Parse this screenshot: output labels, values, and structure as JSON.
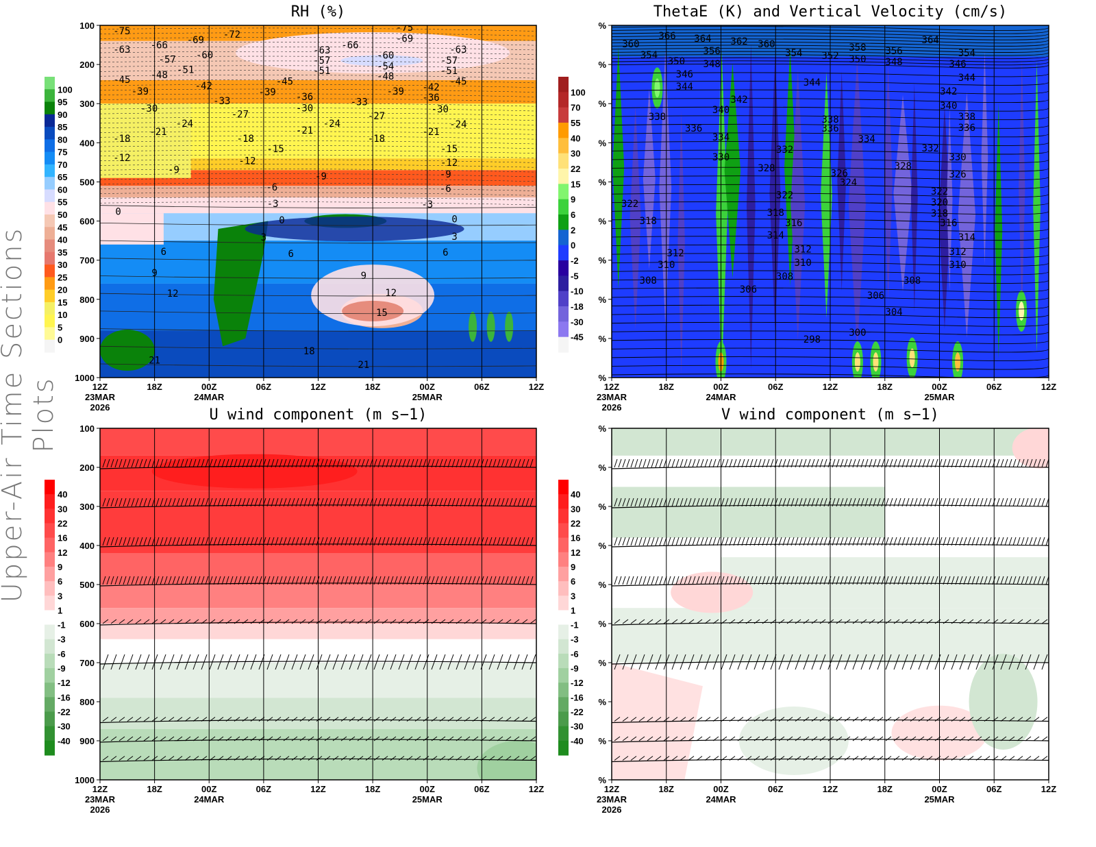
{
  "side_title": "Upper-Air Time Sections Plots",
  "x_axis": {
    "hours": [
      0,
      6,
      12,
      18,
      24,
      30,
      36,
      42,
      48
    ],
    "labels": [
      "12Z",
      "18Z",
      "00Z",
      "06Z",
      "12Z",
      "18Z",
      "00Z",
      "06Z",
      "12Z"
    ],
    "dates": [
      {
        "hour": 0,
        "label": "23MAR"
      },
      {
        "hour": 12,
        "label": "24MAR"
      },
      {
        "hour": 36,
        "label": "25MAR"
      }
    ],
    "year": "2026"
  },
  "chart_data": [
    {
      "id": "rh",
      "type": "heatmap",
      "title": "RH (%)",
      "y_ticks": [
        "100",
        "200",
        "300",
        "400",
        "500",
        "600",
        "700",
        "800",
        "900",
        "1000"
      ],
      "y_values": [
        100,
        200,
        300,
        400,
        500,
        600,
        700,
        800,
        900,
        1000
      ],
      "ylim": [
        100,
        1000
      ],
      "xlim_hours": [
        0,
        48
      ],
      "colorbar": {
        "labels": [
          "100",
          "95",
          "90",
          "85",
          "80",
          "75",
          "70",
          "65",
          "60",
          "55",
          "50",
          "45",
          "40",
          "35",
          "30",
          "25",
          "20",
          "15",
          "10",
          "5",
          "0"
        ],
        "colors": [
          "#78e078",
          "#3cb43c",
          "#0a820a",
          "#0a2896",
          "#0a4bbe",
          "#0f6ee6",
          "#148cf5",
          "#32b4ff",
          "#96cdff",
          "#d7dcff",
          "#ffe1e6",
          "#f5c8b4",
          "#eeaf96",
          "#e68c7d",
          "#e6786e",
          "#ff5a1e",
          "#ff9b14",
          "#ffcd28",
          "#f5f064",
          "#fff550",
          "#fffa96",
          "#f5f5f5"
        ]
      },
      "contour_labels": [
        {
          "t": 2.4,
          "p": 114,
          "v": "-75"
        },
        {
          "t": 2.4,
          "p": 161,
          "v": "-63"
        },
        {
          "t": 6.5,
          "p": 150,
          "v": "-66"
        },
        {
          "t": 10.5,
          "p": 137,
          "v": "-69"
        },
        {
          "t": 14.5,
          "p": 123,
          "v": "-72"
        },
        {
          "t": 7.4,
          "p": 187,
          "v": "-57"
        },
        {
          "t": 11.5,
          "p": 175,
          "v": "-60"
        },
        {
          "t": 9.4,
          "p": 213,
          "v": "-51"
        },
        {
          "t": 6.5,
          "p": 226,
          "v": "-48"
        },
        {
          "t": 2.4,
          "p": 238,
          "v": "-45"
        },
        {
          "t": 4.4,
          "p": 268,
          "v": "-39"
        },
        {
          "t": 11.4,
          "p": 254,
          "v": "-42"
        },
        {
          "t": 5.4,
          "p": 312,
          "v": "-30"
        },
        {
          "t": 13.4,
          "p": 293,
          "v": "-33"
        },
        {
          "t": 9.3,
          "p": 350,
          "v": "-24"
        },
        {
          "t": 15.4,
          "p": 327,
          "v": "-27"
        },
        {
          "t": 6.4,
          "p": 371,
          "v": "-21"
        },
        {
          "t": 2.4,
          "p": 389,
          "v": "-18"
        },
        {
          "t": 2.4,
          "p": 438,
          "v": "-12"
        },
        {
          "t": 16,
          "p": 389,
          "v": "-18"
        },
        {
          "t": 19.3,
          "p": 415,
          "v": "-15"
        },
        {
          "t": 16.2,
          "p": 446,
          "v": "-12"
        },
        {
          "t": 8.1,
          "p": 469,
          "v": "-9"
        },
        {
          "t": 24.3,
          "p": 485,
          "v": "-9"
        },
        {
          "t": 18.9,
          "p": 513,
          "v": "-6"
        },
        {
          "t": 19,
          "p": 555,
          "v": "-3"
        },
        {
          "t": 2,
          "p": 575,
          "v": "0"
        },
        {
          "t": 20,
          "p": 597,
          "v": "0"
        },
        {
          "t": 18,
          "p": 641,
          "v": "3"
        },
        {
          "t": 7,
          "p": 678,
          "v": "6"
        },
        {
          "t": 21,
          "p": 683,
          "v": "6"
        },
        {
          "t": 6,
          "p": 732,
          "v": "9"
        },
        {
          "t": 8,
          "p": 785,
          "v": "12"
        },
        {
          "t": 18.4,
          "p": 270,
          "v": "-39"
        },
        {
          "t": 20.3,
          "p": 243,
          "v": "-45"
        },
        {
          "t": 22.5,
          "p": 282,
          "v": "-36"
        },
        {
          "t": 22.5,
          "p": 311,
          "v": "-30"
        },
        {
          "t": 22.5,
          "p": 368,
          "v": "-21"
        },
        {
          "t": 25.5,
          "p": 350,
          "v": "-24"
        },
        {
          "t": 24.4,
          "p": 163,
          "v": "-63"
        },
        {
          "t": 24.4,
          "p": 189,
          "v": "-57"
        },
        {
          "t": 24.4,
          "p": 216,
          "v": "-51"
        },
        {
          "t": 27.5,
          "p": 150,
          "v": "-66"
        },
        {
          "t": 31.4,
          "p": 176,
          "v": "-60"
        },
        {
          "t": 31.4,
          "p": 204,
          "v": "-54"
        },
        {
          "t": 31.4,
          "p": 230,
          "v": "-48"
        },
        {
          "t": 33.5,
          "p": 105,
          "v": "-75"
        },
        {
          "t": 33.5,
          "p": 133,
          "v": "-69"
        },
        {
          "t": 28.5,
          "p": 295,
          "v": "-33"
        },
        {
          "t": 32.5,
          "p": 268,
          "v": "-39"
        },
        {
          "t": 30.4,
          "p": 331,
          "v": "-27"
        },
        {
          "t": 30.4,
          "p": 389,
          "v": "-18"
        },
        {
          "t": 36.4,
          "p": 258,
          "v": "-42"
        },
        {
          "t": 36.4,
          "p": 284,
          "v": "-36"
        },
        {
          "t": 37.4,
          "p": 314,
          "v": "-30"
        },
        {
          "t": 36.4,
          "p": 371,
          "v": "-21"
        },
        {
          "t": 39.4,
          "p": 161,
          "v": "-63"
        },
        {
          "t": 38.4,
          "p": 189,
          "v": "-57"
        },
        {
          "t": 38.4,
          "p": 216,
          "v": "-51"
        },
        {
          "t": 39.4,
          "p": 243,
          "v": "-45"
        },
        {
          "t": 39.4,
          "p": 352,
          "v": "-24"
        },
        {
          "t": 38.4,
          "p": 415,
          "v": "-15"
        },
        {
          "t": 38.4,
          "p": 450,
          "v": "-12"
        },
        {
          "t": 38,
          "p": 480,
          "v": "-9"
        },
        {
          "t": 38,
          "p": 517,
          "v": "-6"
        },
        {
          "t": 36,
          "p": 557,
          "v": "-3"
        },
        {
          "t": 39,
          "p": 595,
          "v": "0"
        },
        {
          "t": 39,
          "p": 639,
          "v": "3"
        },
        {
          "t": 38,
          "p": 680,
          "v": "6"
        },
        {
          "t": 29,
          "p": 739,
          "v": "9"
        },
        {
          "t": 32,
          "p": 783,
          "v": "12"
        },
        {
          "t": 31,
          "p": 834,
          "v": "15"
        },
        {
          "t": 23,
          "p": 932,
          "v": "18"
        },
        {
          "t": 29,
          "p": 967,
          "v": "21"
        },
        {
          "t": 6,
          "p": 955,
          "v": "21"
        }
      ]
    },
    {
      "id": "thetae",
      "type": "heatmap",
      "title": "ThetaE (K) and Vertical Velocity (cm/s)",
      "y_ticks": [
        "%",
        "%",
        "%",
        "%",
        "%",
        "%",
        "%",
        "%",
        "%",
        "%"
      ],
      "y_values": [
        100,
        200,
        300,
        400,
        500,
        600,
        700,
        800,
        900,
        1000
      ],
      "ylim": [
        100,
        1000
      ],
      "xlim_hours": [
        0,
        48
      ],
      "colorbar": {
        "labels": [
          "100",
          "70",
          "55",
          "40",
          "30",
          "22",
          "15",
          "9",
          "6",
          "2",
          "0",
          "-2",
          "-5",
          "-10",
          "-18",
          "-30",
          "-45"
        ],
        "colors": [
          "#a01e1e",
          "#b42828",
          "#c83c3c",
          "#ff9b00",
          "#ffbe3c",
          "#ffe178",
          "#fff5aa",
          "#82f56e",
          "#3cd23c",
          "#0fa014",
          "#1464d2",
          "#1e3cff",
          "#2800a0",
          "#2d1ea0",
          "#5040c8",
          "#7364dc",
          "#8c78f0",
          "#f5f5f5"
        ]
      },
      "contour_labels": [
        {
          "t": 6.1,
          "p": 126,
          "v": "366"
        },
        {
          "t": 2.1,
          "p": 147,
          "v": "360"
        },
        {
          "t": 10,
          "p": 133,
          "v": "364"
        },
        {
          "t": 14,
          "p": 140,
          "v": "362"
        },
        {
          "t": 17,
          "p": 147,
          "v": "360"
        },
        {
          "t": 11,
          "p": 165,
          "v": "356"
        },
        {
          "t": 4.1,
          "p": 175,
          "v": "354"
        },
        {
          "t": 7.1,
          "p": 191,
          "v": "350"
        },
        {
          "t": 11,
          "p": 198,
          "v": "348"
        },
        {
          "t": 20,
          "p": 170,
          "v": "354"
        },
        {
          "t": 24,
          "p": 177,
          "v": "352"
        },
        {
          "t": 27,
          "p": 156,
          "v": "358"
        },
        {
          "t": 27,
          "p": 186,
          "v": "350"
        },
        {
          "t": 31,
          "p": 165,
          "v": "356"
        },
        {
          "t": 31,
          "p": 193,
          "v": "348"
        },
        {
          "t": 35,
          "p": 137,
          "v": "364"
        },
        {
          "t": 39,
          "p": 170,
          "v": "354"
        },
        {
          "t": 38,
          "p": 198,
          "v": "346"
        },
        {
          "t": 39,
          "p": 233,
          "v": "344"
        },
        {
          "t": 8,
          "p": 224,
          "v": "346"
        },
        {
          "t": 8,
          "p": 256,
          "v": "344"
        },
        {
          "t": 22,
          "p": 245,
          "v": "344"
        },
        {
          "t": 14,
          "p": 289,
          "v": "342"
        },
        {
          "t": 12,
          "p": 315,
          "v": "340"
        },
        {
          "t": 37,
          "p": 268,
          "v": "342"
        },
        {
          "t": 37,
          "p": 305,
          "v": "340"
        },
        {
          "t": 5,
          "p": 333,
          "v": "338"
        },
        {
          "t": 9,
          "p": 363,
          "v": "336"
        },
        {
          "t": 24,
          "p": 340,
          "v": "338"
        },
        {
          "t": 24,
          "p": 363,
          "v": "336"
        },
        {
          "t": 39,
          "p": 333,
          "v": "338"
        },
        {
          "t": 39,
          "p": 361,
          "v": "336"
        },
        {
          "t": 12,
          "p": 385,
          "v": "334"
        },
        {
          "t": 28,
          "p": 390,
          "v": "334"
        },
        {
          "t": 19,
          "p": 417,
          "v": "332"
        },
        {
          "t": 35,
          "p": 413,
          "v": "332"
        },
        {
          "t": 12,
          "p": 436,
          "v": "330"
        },
        {
          "t": 38,
          "p": 436,
          "v": "330"
        },
        {
          "t": 17,
          "p": 464,
          "v": "328"
        },
        {
          "t": 32,
          "p": 459,
          "v": "328"
        },
        {
          "t": 25,
          "p": 477,
          "v": "326"
        },
        {
          "t": 38,
          "p": 480,
          "v": "326"
        },
        {
          "t": 26,
          "p": 501,
          "v": "324"
        },
        {
          "t": 19,
          "p": 533,
          "v": "322"
        },
        {
          "t": 36,
          "p": 524,
          "v": "322"
        },
        {
          "t": 36,
          "p": 552,
          "v": "320"
        },
        {
          "t": 36,
          "p": 580,
          "v": "318"
        },
        {
          "t": 37,
          "p": 604,
          "v": "316"
        },
        {
          "t": 2,
          "p": 555,
          "v": "322"
        },
        {
          "t": 4,
          "p": 599,
          "v": "318"
        },
        {
          "t": 18,
          "p": 578,
          "v": "318"
        },
        {
          "t": 20,
          "p": 604,
          "v": "316"
        },
        {
          "t": 18,
          "p": 636,
          "v": "314"
        },
        {
          "t": 39,
          "p": 641,
          "v": "314"
        },
        {
          "t": 7,
          "p": 681,
          "v": "312"
        },
        {
          "t": 21,
          "p": 672,
          "v": "312"
        },
        {
          "t": 38,
          "p": 678,
          "v": "312"
        },
        {
          "t": 6,
          "p": 711,
          "v": "310"
        },
        {
          "t": 21,
          "p": 706,
          "v": "310"
        },
        {
          "t": 38,
          "p": 711,
          "v": "310"
        },
        {
          "t": 4,
          "p": 751,
          "v": "308"
        },
        {
          "t": 19,
          "p": 741,
          "v": "308"
        },
        {
          "t": 33,
          "p": 751,
          "v": "308"
        },
        {
          "t": 15,
          "p": 774,
          "v": "306"
        },
        {
          "t": 29,
          "p": 790,
          "v": "306"
        },
        {
          "t": 31,
          "p": 832,
          "v": "304"
        },
        {
          "t": 27,
          "p": 884,
          "v": "300"
        },
        {
          "t": 22,
          "p": 902,
          "v": "298"
        }
      ]
    },
    {
      "id": "uwind",
      "type": "heatmap",
      "title": "U wind component (m s−1)",
      "y_ticks": [
        "100",
        "200",
        "300",
        "400",
        "500",
        "600",
        "700",
        "800",
        "900",
        "1000"
      ],
      "y_values": [
        100,
        200,
        300,
        400,
        500,
        600,
        700,
        800,
        900,
        1000
      ],
      "ylim": [
        100,
        1000
      ],
      "xlim_hours": [
        0,
        48
      ],
      "barb_levels": [
        200,
        300,
        400,
        500,
        600,
        700,
        850,
        900,
        950
      ],
      "colorbar": {
        "labels": [
          "40",
          "30",
          "22",
          "16",
          "12",
          "9",
          "6",
          "3",
          "1",
          "-1",
          "-3",
          "-6",
          "-9",
          "-12",
          "-16",
          "-22",
          "-30",
          "-40"
        ],
        "colors": [
          "#ff0000",
          "#ff1e1e",
          "#ff3232",
          "#ff4b4b",
          "#ff6464",
          "#ff8080",
          "#ffa0a0",
          "#ffbebe",
          "#ffd7d7",
          "#ffffff",
          "#e6f0e6",
          "#d2e6d2",
          "#b9dcb9",
          "#a0d0a0",
          "#82be82",
          "#64aa64",
          "#4b9b4b",
          "#329132",
          "#1e8c1e"
        ]
      }
    },
    {
      "id": "vwind",
      "type": "heatmap",
      "title": "V wind component (m s−1)",
      "y_ticks": [
        "%",
        "%",
        "%",
        "%",
        "%",
        "%",
        "%",
        "%",
        "%",
        "%"
      ],
      "y_values": [
        100,
        200,
        300,
        400,
        500,
        600,
        700,
        800,
        900,
        1000
      ],
      "ylim": [
        100,
        1000
      ],
      "xlim_hours": [
        0,
        48
      ],
      "barb_levels": [
        200,
        300,
        400,
        500,
        600,
        700,
        850,
        900,
        950
      ],
      "colorbar": {
        "labels": [
          "40",
          "30",
          "22",
          "16",
          "12",
          "9",
          "6",
          "3",
          "1",
          "-1",
          "-3",
          "-6",
          "-9",
          "-12",
          "-16",
          "-22",
          "-30",
          "-40"
        ],
        "colors": [
          "#ff0000",
          "#ff1e1e",
          "#ff3232",
          "#ff4b4b",
          "#ff6464",
          "#ff8080",
          "#ffa0a0",
          "#ffbebe",
          "#ffd7d7",
          "#ffffff",
          "#e6f0e6",
          "#d2e6d2",
          "#b9dcb9",
          "#a0d0a0",
          "#82be82",
          "#64aa64",
          "#4b9b4b",
          "#329132",
          "#1e8c1e"
        ]
      }
    }
  ]
}
